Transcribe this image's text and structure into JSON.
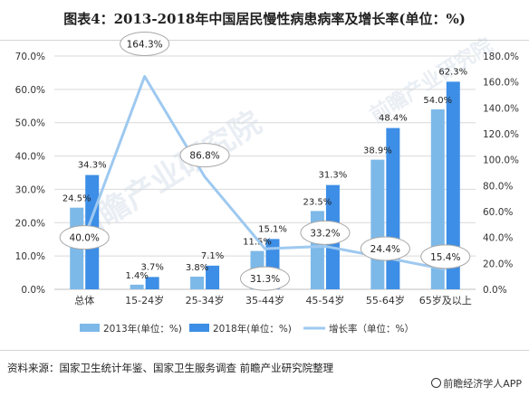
{
  "title": "图表4：2013-2018年中国居民慢性病患病率及增长率(单位：%)",
  "source": "资料来源：国家卫生统计年鉴、国家卫生服务调查 前瞻产业研究院整理",
  "brand": "前瞻经济学人APP",
  "watermark": "前瞻产业研究院",
  "colors": {
    "bar2013": "#7db9e8",
    "bar2018": "#3d8ee6",
    "line": "#9ec9f0",
    "bubble_stroke": "#a8a8a8",
    "grid": "#d9d9d9",
    "axis_text": "#333333"
  },
  "chart_data": {
    "type": "bar+line",
    "categories": [
      "总体",
      "15-24岁",
      "25-34岁",
      "35-44岁",
      "45-54岁",
      "55-64岁",
      "65岁及以上"
    ],
    "series": [
      {
        "name": "2013年(单位：%)",
        "axis": "left",
        "values": [
          24.5,
          1.4,
          3.8,
          11.5,
          23.5,
          38.9,
          54.0
        ],
        "labels": [
          "24.5%",
          "1.4%",
          "3.8%",
          "11.5%",
          "23.5%",
          "38.9%",
          "54.0%"
        ]
      },
      {
        "name": "2018年(单位：%)",
        "axis": "left",
        "values": [
          34.3,
          3.7,
          7.1,
          15.1,
          31.3,
          48.4,
          62.3
        ],
        "labels": [
          "34.3%",
          "3.7%",
          "7.1%",
          "15.1%",
          "31.3%",
          "48.4%",
          "62.3%"
        ]
      },
      {
        "name": "增长率（单位：%）",
        "axis": "right",
        "type": "line",
        "values": [
          40.0,
          164.3,
          86.8,
          31.3,
          33.2,
          24.4,
          15.4
        ],
        "labels": [
          "40.0%",
          "164.3%",
          "86.8%",
          "31.3%",
          "33.2%",
          "24.4%",
          "15.4%"
        ]
      }
    ],
    "y_left": {
      "min": 0,
      "max": 70,
      "step": 10,
      "ticks": [
        "0.0%",
        "10.0%",
        "20.0%",
        "30.0%",
        "40.0%",
        "50.0%",
        "60.0%",
        "70.0%"
      ]
    },
    "y_right": {
      "min": 0,
      "max": 180,
      "step": 20,
      "ticks": [
        "0.0%",
        "20.0%",
        "40.0%",
        "60.0%",
        "80.0%",
        "100.0%",
        "120.0%",
        "140.0%",
        "160.0%",
        "180.0%"
      ]
    },
    "grid": true,
    "legend": "bottom"
  }
}
